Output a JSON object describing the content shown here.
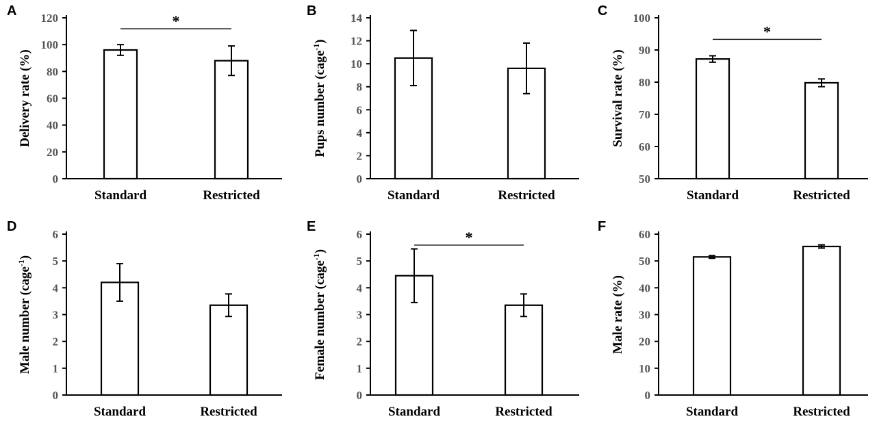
{
  "chart_data": [
    {
      "type": "bar",
      "panel": "A",
      "categories": [
        "Standard",
        "Restricted"
      ],
      "values": [
        96,
        88
      ],
      "errors": [
        4,
        11
      ],
      "ylabel": "Delivery rate (%)",
      "ylabel_sup": "",
      "ylabel_end": "",
      "ylim": [
        0,
        120
      ],
      "ticks": [
        "0",
        "20",
        "40",
        "60",
        "80",
        "100",
        "120"
      ],
      "significance": "*"
    },
    {
      "type": "bar",
      "panel": "B",
      "categories": [
        "Standard",
        "Restricted"
      ],
      "values": [
        10.5,
        9.6
      ],
      "errors": [
        2.4,
        2.2
      ],
      "ylabel": "Pups number (cage",
      "ylabel_sup": "-1",
      "ylabel_end": ")",
      "ylim": [
        0,
        14
      ],
      "ticks": [
        "0",
        "2",
        "4",
        "6",
        "8",
        "10",
        "12",
        "14"
      ],
      "significance": ""
    },
    {
      "type": "bar",
      "panel": "C",
      "categories": [
        "Standard",
        "Restricted"
      ],
      "values": [
        87.2,
        79.8
      ],
      "errors": [
        1.0,
        1.2
      ],
      "ylabel": "Survival rate (%)",
      "ylabel_sup": "",
      "ylabel_end": "",
      "ylim": [
        50,
        100
      ],
      "ticks": [
        "50",
        "60",
        "70",
        "80",
        "90",
        "100"
      ],
      "significance": "*"
    },
    {
      "type": "bar",
      "panel": "D",
      "categories": [
        "Standard",
        "Restricted"
      ],
      "values": [
        4.2,
        3.35
      ],
      "errors": [
        0.7,
        0.42
      ],
      "ylabel": "Male number (cage",
      "ylabel_sup": "-1",
      "ylabel_end": ")",
      "ylim": [
        0,
        6
      ],
      "ticks": [
        "0",
        "1",
        "2",
        "3",
        "4",
        "5",
        "6"
      ],
      "significance": ""
    },
    {
      "type": "bar",
      "panel": "E",
      "categories": [
        "Standard",
        "Restricted"
      ],
      "values": [
        4.45,
        3.35
      ],
      "errors": [
        1.0,
        0.42
      ],
      "ylabel": "Female number (cage",
      "ylabel_sup": "-1",
      "ylabel_end": ")",
      "ylim": [
        0,
        6
      ],
      "ticks": [
        "0",
        "1",
        "2",
        "3",
        "4",
        "5",
        "6"
      ],
      "significance": "*"
    },
    {
      "type": "bar",
      "panel": "F",
      "categories": [
        "Standard",
        "Restricted"
      ],
      "values": [
        51.5,
        55.4
      ],
      "errors": [
        0.5,
        0.6
      ],
      "ylabel": "Male rate (%)",
      "ylabel_sup": "",
      "ylabel_end": "",
      "ylim": [
        0,
        60
      ],
      "ticks": [
        "0",
        "10",
        "20",
        "30",
        "40",
        "50",
        "60"
      ],
      "significance": ""
    }
  ]
}
